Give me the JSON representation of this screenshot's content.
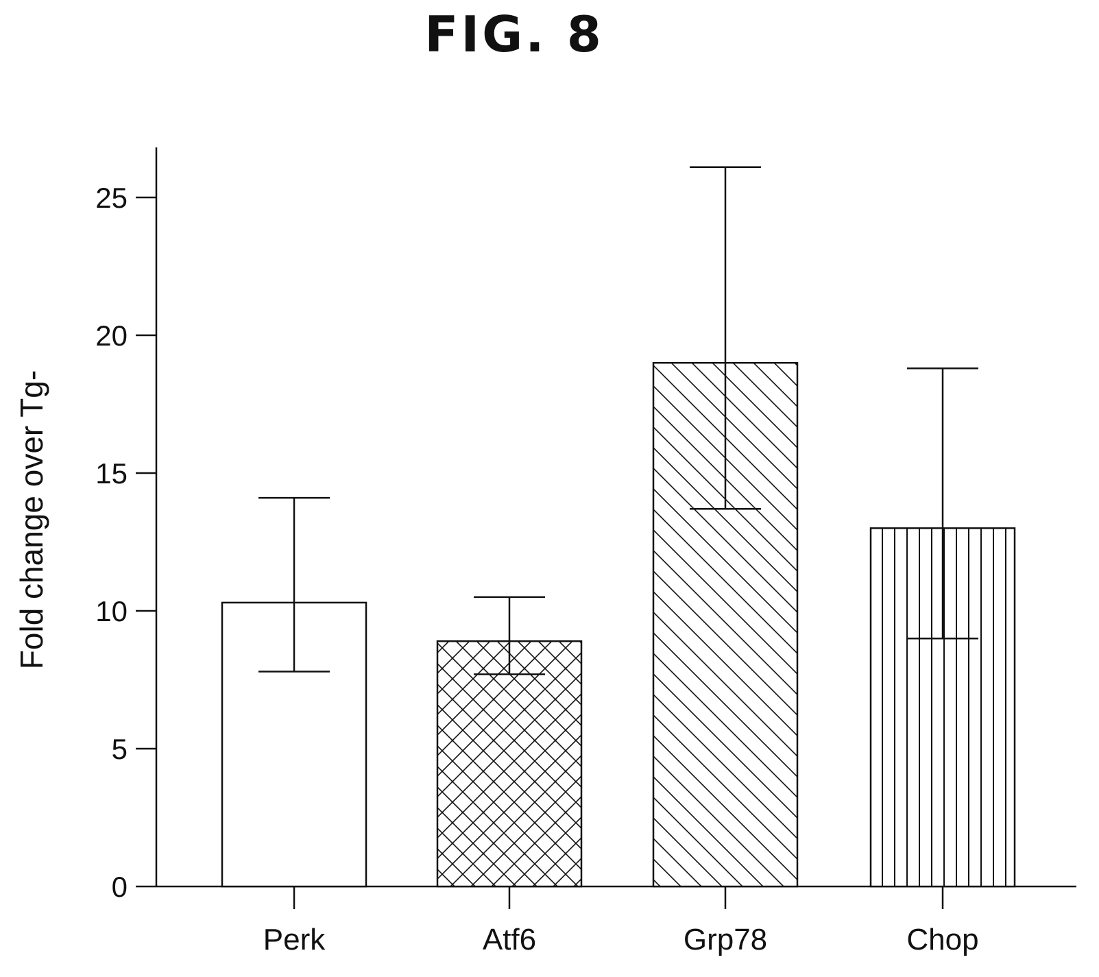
{
  "figure": {
    "title": "FIG. 8"
  },
  "chart_data": {
    "type": "bar",
    "title": "",
    "xlabel": "",
    "ylabel": "Fold change over Tg-",
    "categories": [
      "Perk",
      "Atf6",
      "Grp78",
      "Chop"
    ],
    "values": [
      10.3,
      8.9,
      19.0,
      13.0
    ],
    "error_upper": [
      14.1,
      10.5,
      26.1,
      18.8
    ],
    "error_lower": [
      7.8,
      7.7,
      13.7,
      9.0
    ],
    "patterns": [
      "none",
      "crosshatch",
      "diagonal",
      "vertical"
    ],
    "ylim": [
      0,
      26.5
    ],
    "yticks": [
      0,
      5,
      10,
      15,
      20,
      25
    ],
    "grid": false,
    "colors": {
      "stroke": "#111111",
      "fill": "#ffffff"
    }
  }
}
